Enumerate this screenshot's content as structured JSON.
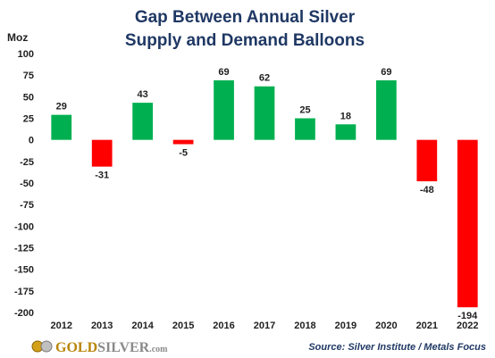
{
  "chart_data": {
    "type": "bar",
    "title_lines": [
      "Gap Between Annual Silver",
      "Supply and Demand Balloons"
    ],
    "ylabel": "Moz",
    "xlabel": "",
    "categories": [
      "2012",
      "2013",
      "2014",
      "2015",
      "2016",
      "2017",
      "2018",
      "2019",
      "2020",
      "2021",
      "2022"
    ],
    "values": [
      29,
      -31,
      43,
      -5,
      69,
      62,
      25,
      18,
      69,
      -48,
      -194
    ],
    "data_labels": [
      "29",
      "-31",
      "43",
      "-5",
      "69",
      "62",
      "25",
      "18",
      "69",
      "-48",
      "-194"
    ],
    "ylim": [
      -200,
      100
    ],
    "yticks": [
      100,
      75,
      50,
      25,
      0,
      -25,
      -50,
      -75,
      -100,
      -125,
      -150,
      -175,
      -200
    ],
    "ytick_labels": [
      "100",
      "75",
      "50",
      "25",
      "0",
      "-25",
      "-50",
      "-75",
      "-100",
      "-125",
      "-150",
      "-175",
      "-200"
    ],
    "colors": {
      "positive": "#00b050",
      "negative": "#ff0000"
    },
    "grid": false,
    "legend": "none"
  },
  "footer": {
    "source": "Source: Silver Institute / Metals Focus",
    "logo_gold": "GOLD",
    "logo_silver": "SILVER",
    "logo_com": ".com"
  }
}
